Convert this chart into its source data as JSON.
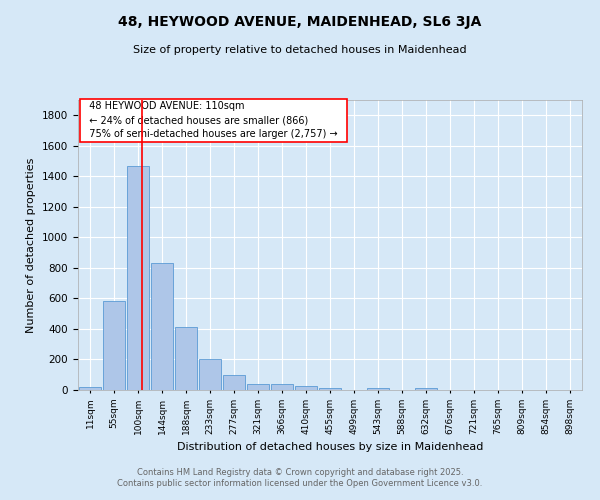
{
  "title": "48, HEYWOOD AVENUE, MAIDENHEAD, SL6 3JA",
  "subtitle": "Size of property relative to detached houses in Maidenhead",
  "xlabel": "Distribution of detached houses by size in Maidenhead",
  "ylabel": "Number of detached properties",
  "bar_labels": [
    "11sqm",
    "55sqm",
    "100sqm",
    "144sqm",
    "188sqm",
    "233sqm",
    "277sqm",
    "321sqm",
    "366sqm",
    "410sqm",
    "455sqm",
    "499sqm",
    "543sqm",
    "588sqm",
    "632sqm",
    "676sqm",
    "721sqm",
    "765sqm",
    "809sqm",
    "854sqm",
    "898sqm"
  ],
  "bar_values": [
    20,
    580,
    1470,
    830,
    415,
    200,
    100,
    40,
    40,
    25,
    10,
    0,
    15,
    0,
    15,
    0,
    0,
    0,
    0,
    0,
    0
  ],
  "bar_color": "#aec6e8",
  "bar_edge_color": "#5b9bd5",
  "background_color": "#d6e8f7",
  "plot_bg_color": "#d6e8f7",
  "red_line_x": 2.15,
  "annotation_text": "  48 HEYWOOD AVENUE: 110sqm  \n  ← 24% of detached houses are smaller (866)  \n  75% of semi-detached houses are larger (2,757) →  ",
  "ylim": [
    0,
    1900
  ],
  "ytick_interval": 200,
  "footer_line1": "Contains HM Land Registry data © Crown copyright and database right 2025.",
  "footer_line2": "Contains public sector information licensed under the Open Government Licence v3.0."
}
